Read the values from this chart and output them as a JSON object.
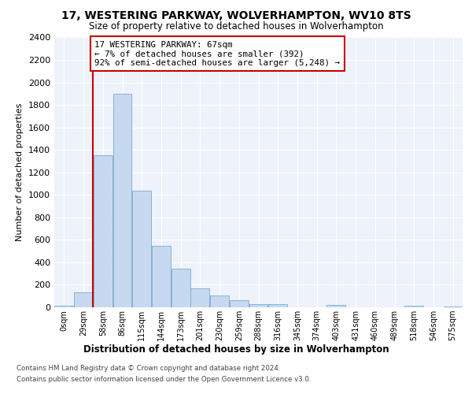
{
  "title1": "17, WESTERING PARKWAY, WOLVERHAMPTON, WV10 8TS",
  "title2": "Size of property relative to detached houses in Wolverhampton",
  "xlabel": "Distribution of detached houses by size in Wolverhampton",
  "ylabel": "Number of detached properties",
  "footer1": "Contains HM Land Registry data © Crown copyright and database right 2024.",
  "footer2": "Contains public sector information licensed under the Open Government Licence v3.0.",
  "categories": [
    "0sqm",
    "29sqm",
    "58sqm",
    "86sqm",
    "115sqm",
    "144sqm",
    "173sqm",
    "201sqm",
    "230sqm",
    "259sqm",
    "288sqm",
    "316sqm",
    "345sqm",
    "374sqm",
    "403sqm",
    "431sqm",
    "460sqm",
    "489sqm",
    "518sqm",
    "546sqm",
    "575sqm"
  ],
  "values": [
    15,
    130,
    1350,
    1900,
    1040,
    545,
    340,
    165,
    105,
    60,
    30,
    25,
    0,
    0,
    20,
    0,
    0,
    0,
    15,
    0,
    10
  ],
  "bar_color": "#c6d9f0",
  "bar_edge_color": "#7aaacf",
  "vline_color": "#cc0000",
  "annotation_text": "17 WESTERING PARKWAY: 67sqm\n← 7% of detached houses are smaller (392)\n92% of semi-detached houses are larger (5,248) →",
  "annotation_box_color": "#ffffff",
  "annotation_box_edge_color": "#cc0000",
  "ylim": [
    0,
    2400
  ],
  "yticks": [
    0,
    200,
    400,
    600,
    800,
    1000,
    1200,
    1400,
    1600,
    1800,
    2000,
    2200,
    2400
  ],
  "bg_color": "#edf2fb"
}
